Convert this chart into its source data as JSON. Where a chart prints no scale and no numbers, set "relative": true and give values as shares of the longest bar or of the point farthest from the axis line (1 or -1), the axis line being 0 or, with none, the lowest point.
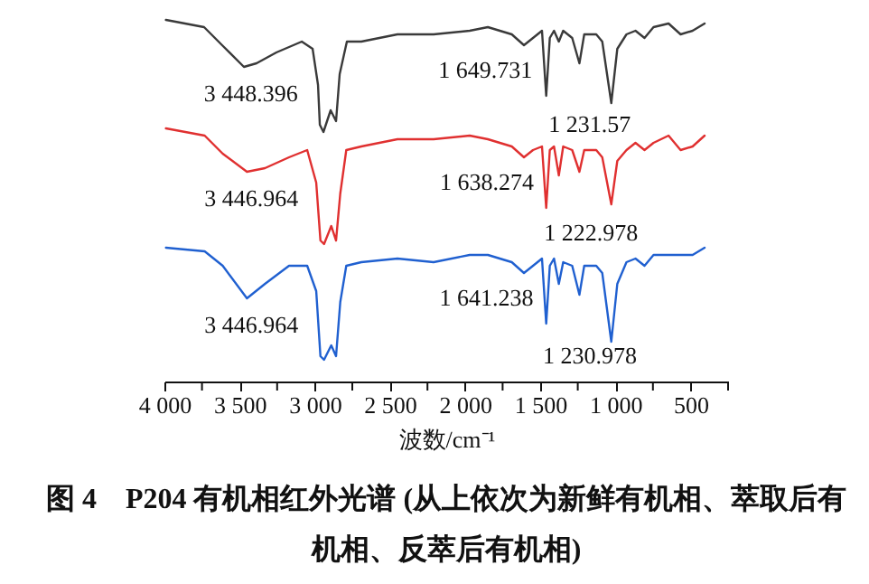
{
  "chart_data": {
    "type": "line",
    "relative": true,
    "title": "图 4　P204 有机相红外光谱 (从上依次为新鲜有机相、萃取后有机相、反萃后有机相)",
    "xlabel": "波数/cm⁻¹",
    "xlim": [
      4000,
      250
    ],
    "xticks": [
      {
        "value": 4000,
        "label": "4 000"
      },
      {
        "value": 3750,
        "label": null
      },
      {
        "value": 3500,
        "label": "3 500"
      },
      {
        "value": 3250,
        "label": null
      },
      {
        "value": 3000,
        "label": "3 000"
      },
      {
        "value": 2750,
        "label": null
      },
      {
        "value": 2500,
        "label": "2 500"
      },
      {
        "value": 2250,
        "label": null
      },
      {
        "value": 2000,
        "label": "2 000"
      },
      {
        "value": 1750,
        "label": null
      },
      {
        "value": 1500,
        "label": "1 500"
      },
      {
        "value": 1250,
        "label": null
      },
      {
        "value": 1000,
        "label": "1 000"
      },
      {
        "value": 750,
        "label": null
      },
      {
        "value": 500,
        "label": "500"
      },
      {
        "value": 250,
        "label": null
      }
    ],
    "tick_labels": "x",
    "grid": false,
    "marker": "none",
    "line_style": "solid",
    "series": [
      {
        "color": "#3a3a3a",
        "x": [
          3990,
          3736,
          3616,
          3471,
          3387,
          3255,
          3086,
          3014,
          2978,
          2966,
          2942,
          2894,
          2858,
          2834,
          2786,
          2690,
          2450,
          2209,
          1969,
          1848,
          1689,
          1608,
          1548,
          1488,
          1460,
          1436,
          1408,
          1376,
          1347,
          1287,
          1239,
          1207,
          1127,
          1087,
          1027,
          987,
          926,
          866,
          806,
          746,
          646,
          566,
          486,
          406
        ],
        "values": [
          1.0,
          0.98,
          0.93,
          0.87,
          0.88,
          0.91,
          0.94,
          0.92,
          0.82,
          0.71,
          0.69,
          0.75,
          0.72,
          0.85,
          0.94,
          0.94,
          0.96,
          0.96,
          0.97,
          0.98,
          0.96,
          0.93,
          0.95,
          0.97,
          0.79,
          0.95,
          0.97,
          0.94,
          0.97,
          0.95,
          0.88,
          0.96,
          0.96,
          0.94,
          0.77,
          0.92,
          0.96,
          0.97,
          0.95,
          0.98,
          0.99,
          0.96,
          0.97,
          0.99
        ]
      },
      {
        "color": "#e03030",
        "x": [
          3990,
          3732,
          3612,
          3451,
          3331,
          3171,
          3050,
          2990,
          2962,
          2938,
          2890,
          2858,
          2830,
          2790,
          2690,
          2450,
          2209,
          1969,
          1848,
          1689,
          1608,
          1548,
          1488,
          1460,
          1436,
          1408,
          1376,
          1347,
          1287,
          1239,
          1207,
          1127,
          1087,
          1027,
          987,
          926,
          866,
          806,
          746,
          646,
          566,
          486,
          406
        ],
        "values": [
          0.7,
          0.68,
          0.63,
          0.58,
          0.59,
          0.62,
          0.64,
          0.55,
          0.39,
          0.38,
          0.43,
          0.39,
          0.52,
          0.64,
          0.65,
          0.67,
          0.67,
          0.68,
          0.67,
          0.65,
          0.62,
          0.64,
          0.65,
          0.48,
          0.64,
          0.65,
          0.57,
          0.65,
          0.64,
          0.58,
          0.64,
          0.64,
          0.62,
          0.49,
          0.61,
          0.64,
          0.66,
          0.64,
          0.66,
          0.68,
          0.64,
          0.65,
          0.68
        ]
      },
      {
        "color": "#2060d0",
        "x": [
          3990,
          3732,
          3612,
          3451,
          3331,
          3171,
          3050,
          2990,
          2962,
          2938,
          2890,
          2858,
          2830,
          2790,
          2690,
          2450,
          2209,
          1969,
          1848,
          1689,
          1608,
          1548,
          1488,
          1460,
          1436,
          1408,
          1376,
          1347,
          1287,
          1239,
          1207,
          1127,
          1087,
          1027,
          987,
          926,
          866,
          806,
          746,
          646,
          566,
          486,
          406
        ],
        "values": [
          0.37,
          0.36,
          0.32,
          0.23,
          0.27,
          0.32,
          0.32,
          0.25,
          0.07,
          0.06,
          0.1,
          0.07,
          0.22,
          0.32,
          0.33,
          0.34,
          0.33,
          0.35,
          0.35,
          0.33,
          0.3,
          0.32,
          0.34,
          0.16,
          0.32,
          0.34,
          0.27,
          0.33,
          0.32,
          0.24,
          0.32,
          0.32,
          0.3,
          0.11,
          0.27,
          0.33,
          0.34,
          0.32,
          0.35,
          0.35,
          0.35,
          0.35,
          0.37
        ]
      }
    ],
    "annotations": [
      {
        "text": "3 448.396",
        "x": 3448,
        "y": 0.87
      },
      {
        "text": "1 649.731",
        "x": 1649,
        "y": 0.93
      },
      {
        "text": "1 231.57",
        "x": 1231,
        "y": 0.88
      },
      {
        "text": "3 446.964",
        "x": 3446,
        "y": 0.58
      },
      {
        "text": "1 638.274",
        "x": 1638,
        "y": 0.62
      },
      {
        "text": "1 222.978",
        "x": 1222,
        "y": 0.58
      },
      {
        "text": "3 446.964",
        "x": 3446,
        "y": 0.23
      },
      {
        "text": "1 641.238",
        "x": 1641,
        "y": 0.3
      },
      {
        "text": "1 230.978",
        "x": 1230,
        "y": 0.24
      }
    ]
  }
}
